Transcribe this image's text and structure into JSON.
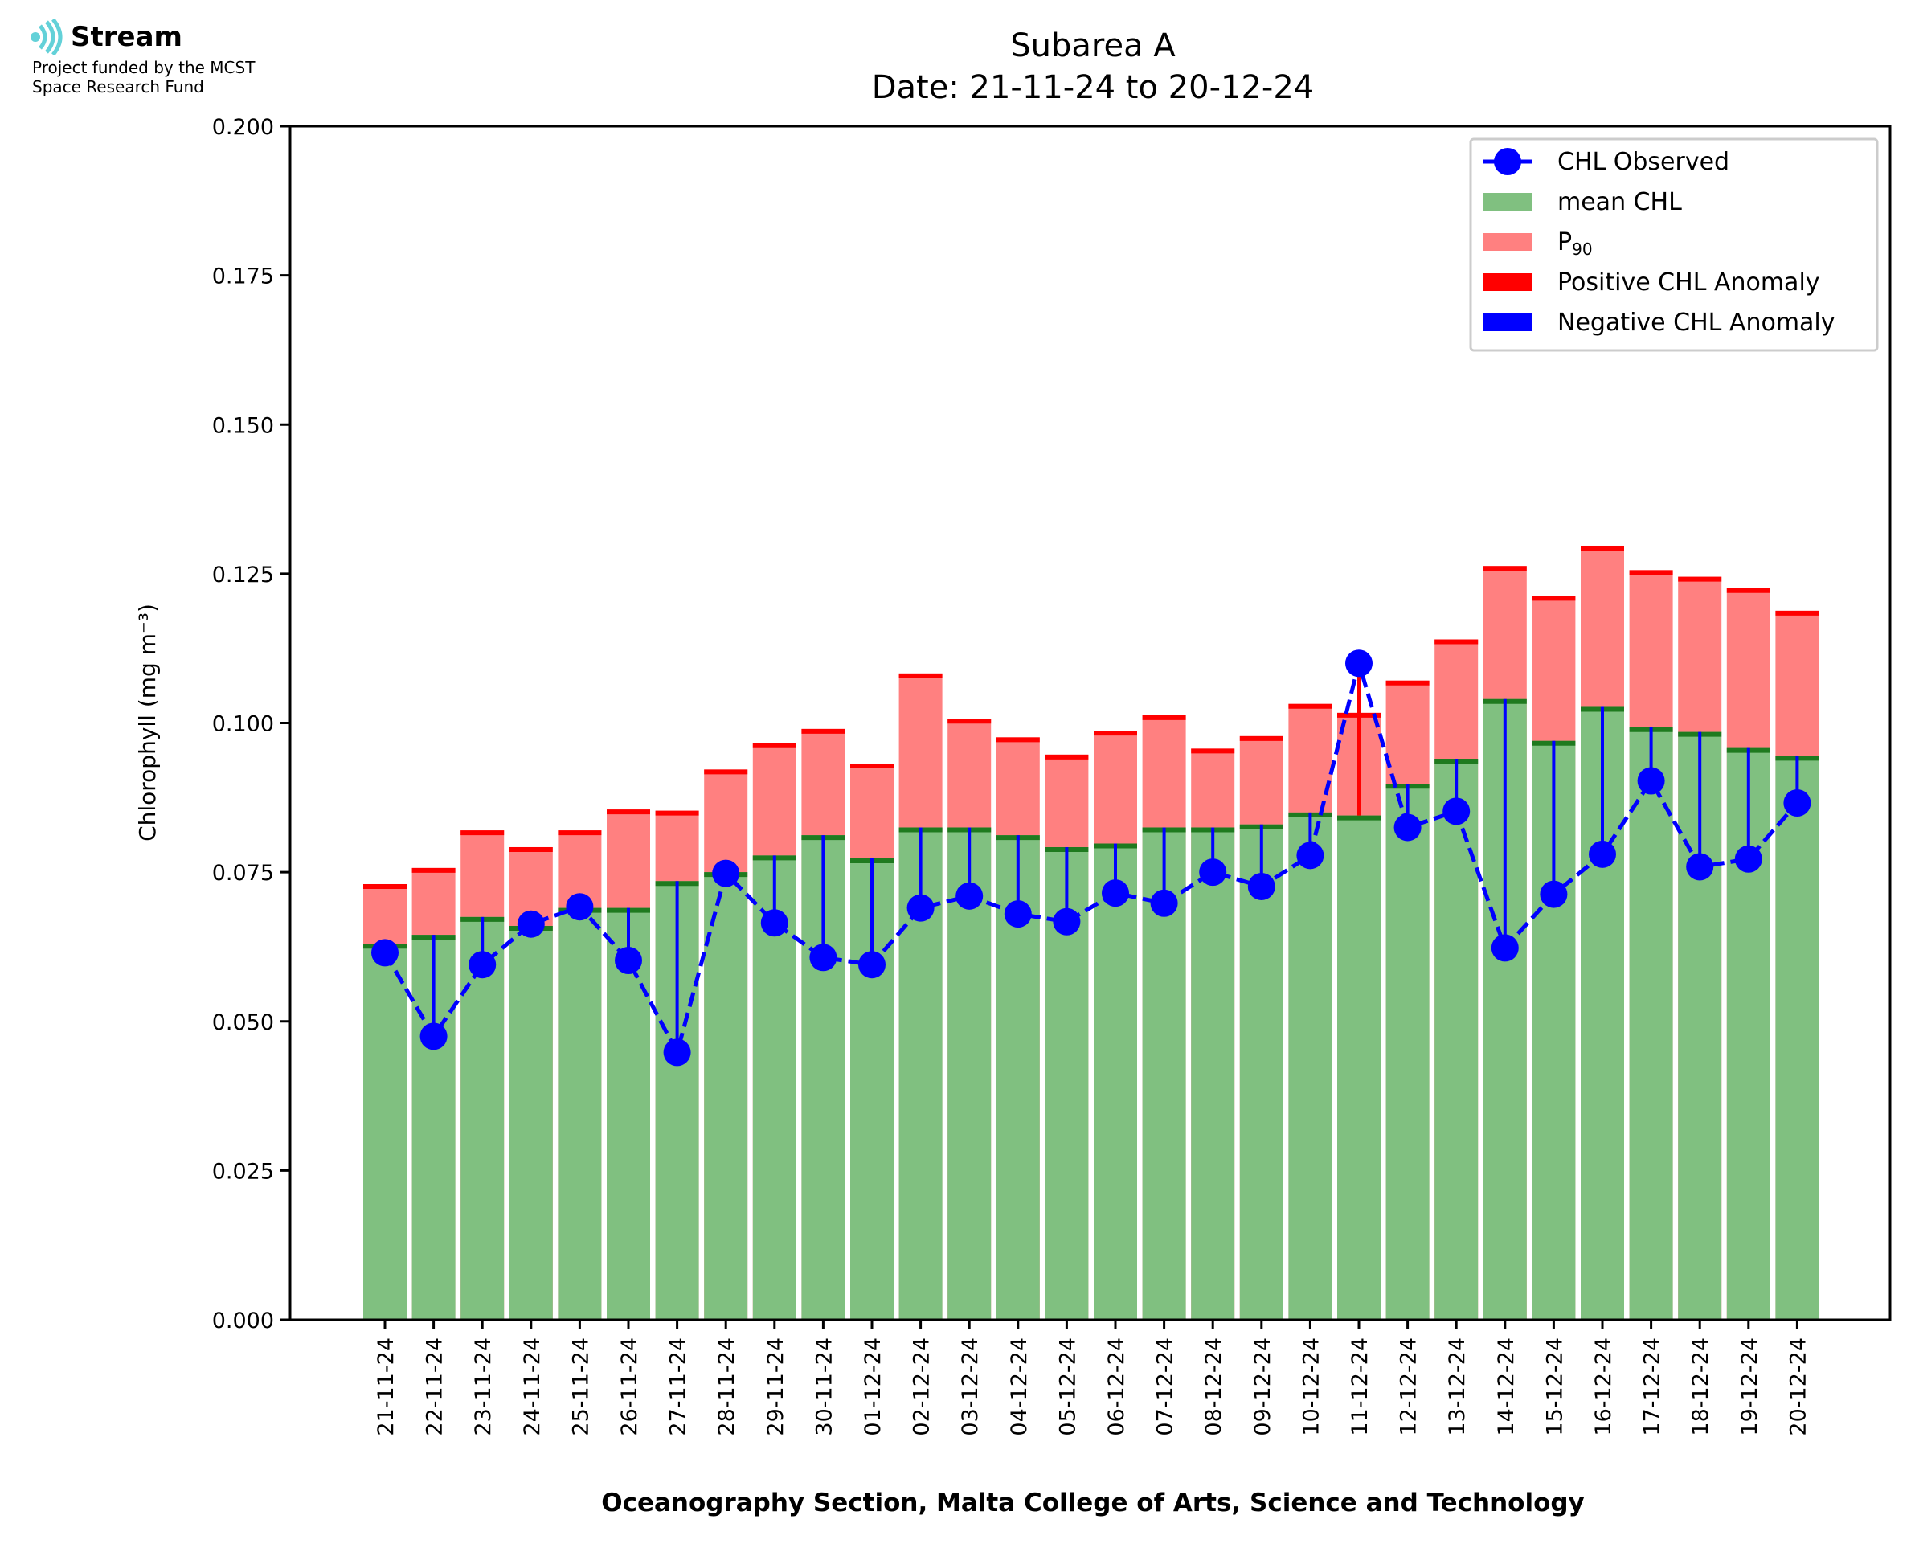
{
  "logo": {
    "name": "Stream",
    "line1": "Project funded by the MCST",
    "line2": "Space Research Fund"
  },
  "colors": {
    "mean_fill": "#80c080",
    "mean_edge": "#1f7a1f",
    "p90_fill": "#ff8080",
    "p90_edge": "#ff0000",
    "observed": "#0000ff",
    "positive_anomaly": "#ff0000",
    "negative_anomaly": "#0000ff"
  },
  "chart_data": {
    "type": "bar",
    "title": "Subarea A",
    "subtitle": "Date: 21-11-24 to 20-12-24",
    "xlabel": "Oceanography Section, Malta College of Arts, Science and Technology",
    "ylabel": "Chlorophyll (mg m⁻³)",
    "ylim": [
      0,
      0.2
    ],
    "yticks": [
      "0.000",
      "0.025",
      "0.050",
      "0.075",
      "0.100",
      "0.125",
      "0.150",
      "0.175",
      "0.200"
    ],
    "grid": false,
    "legend_position": "top-right",
    "legend": [
      {
        "label": "CHL Observed",
        "kind": "line-marker"
      },
      {
        "label": "mean CHL",
        "kind": "mean"
      },
      {
        "label": "P",
        "sub": "90",
        "kind": "p90"
      },
      {
        "label": "Positive CHL Anomaly",
        "kind": "positive"
      },
      {
        "label": "Negative CHL Anomaly",
        "kind": "negative"
      }
    ],
    "categories": [
      "21-11-24",
      "22-11-24",
      "23-11-24",
      "24-11-24",
      "25-11-24",
      "26-11-24",
      "27-11-24",
      "28-11-24",
      "29-11-24",
      "30-11-24",
      "01-12-24",
      "02-12-24",
      "03-12-24",
      "04-12-24",
      "05-12-24",
      "06-12-24",
      "07-12-24",
      "08-12-24",
      "09-12-24",
      "10-12-24",
      "11-12-24",
      "12-12-24",
      "13-12-24",
      "14-12-24",
      "15-12-24",
      "16-12-24",
      "17-12-24",
      "18-12-24",
      "19-12-24",
      "20-12-24"
    ],
    "series": [
      {
        "name": "mean CHL",
        "values": [
          0.063,
          0.0645,
          0.0675,
          0.066,
          0.069,
          0.069,
          0.0735,
          0.075,
          0.0778,
          0.0812,
          0.0773,
          0.0825,
          0.0825,
          0.0812,
          0.0792,
          0.0798,
          0.0825,
          0.0825,
          0.083,
          0.085,
          0.0845,
          0.0898,
          0.094,
          0.104,
          0.097,
          0.1027,
          0.0993,
          0.0985,
          0.0958,
          0.0945
        ]
      },
      {
        "name": "P90",
        "values": [
          0.073,
          0.0757,
          0.082,
          0.0792,
          0.082,
          0.0855,
          0.0853,
          0.0922,
          0.0966,
          0.099,
          0.0932,
          0.1083,
          0.1007,
          0.0976,
          0.0947,
          0.0987,
          0.1013,
          0.0957,
          0.0978,
          0.1032,
          0.1017,
          0.1071,
          0.114,
          0.1263,
          0.1213,
          0.1297,
          0.1256,
          0.1245,
          0.1226,
          0.1188
        ]
      },
      {
        "name": "CHL Observed",
        "values": [
          0.0615,
          0.0475,
          0.0595,
          0.0663,
          0.0692,
          0.0602,
          0.0448,
          0.0748,
          0.0665,
          0.0607,
          0.0595,
          0.069,
          0.071,
          0.068,
          0.0667,
          0.0715,
          0.0698,
          0.075,
          0.0726,
          0.0778,
          0.11,
          0.0825,
          0.0852,
          0.0623,
          0.0713,
          0.078,
          0.0903,
          0.0759,
          0.0772,
          0.0866
        ]
      }
    ]
  }
}
